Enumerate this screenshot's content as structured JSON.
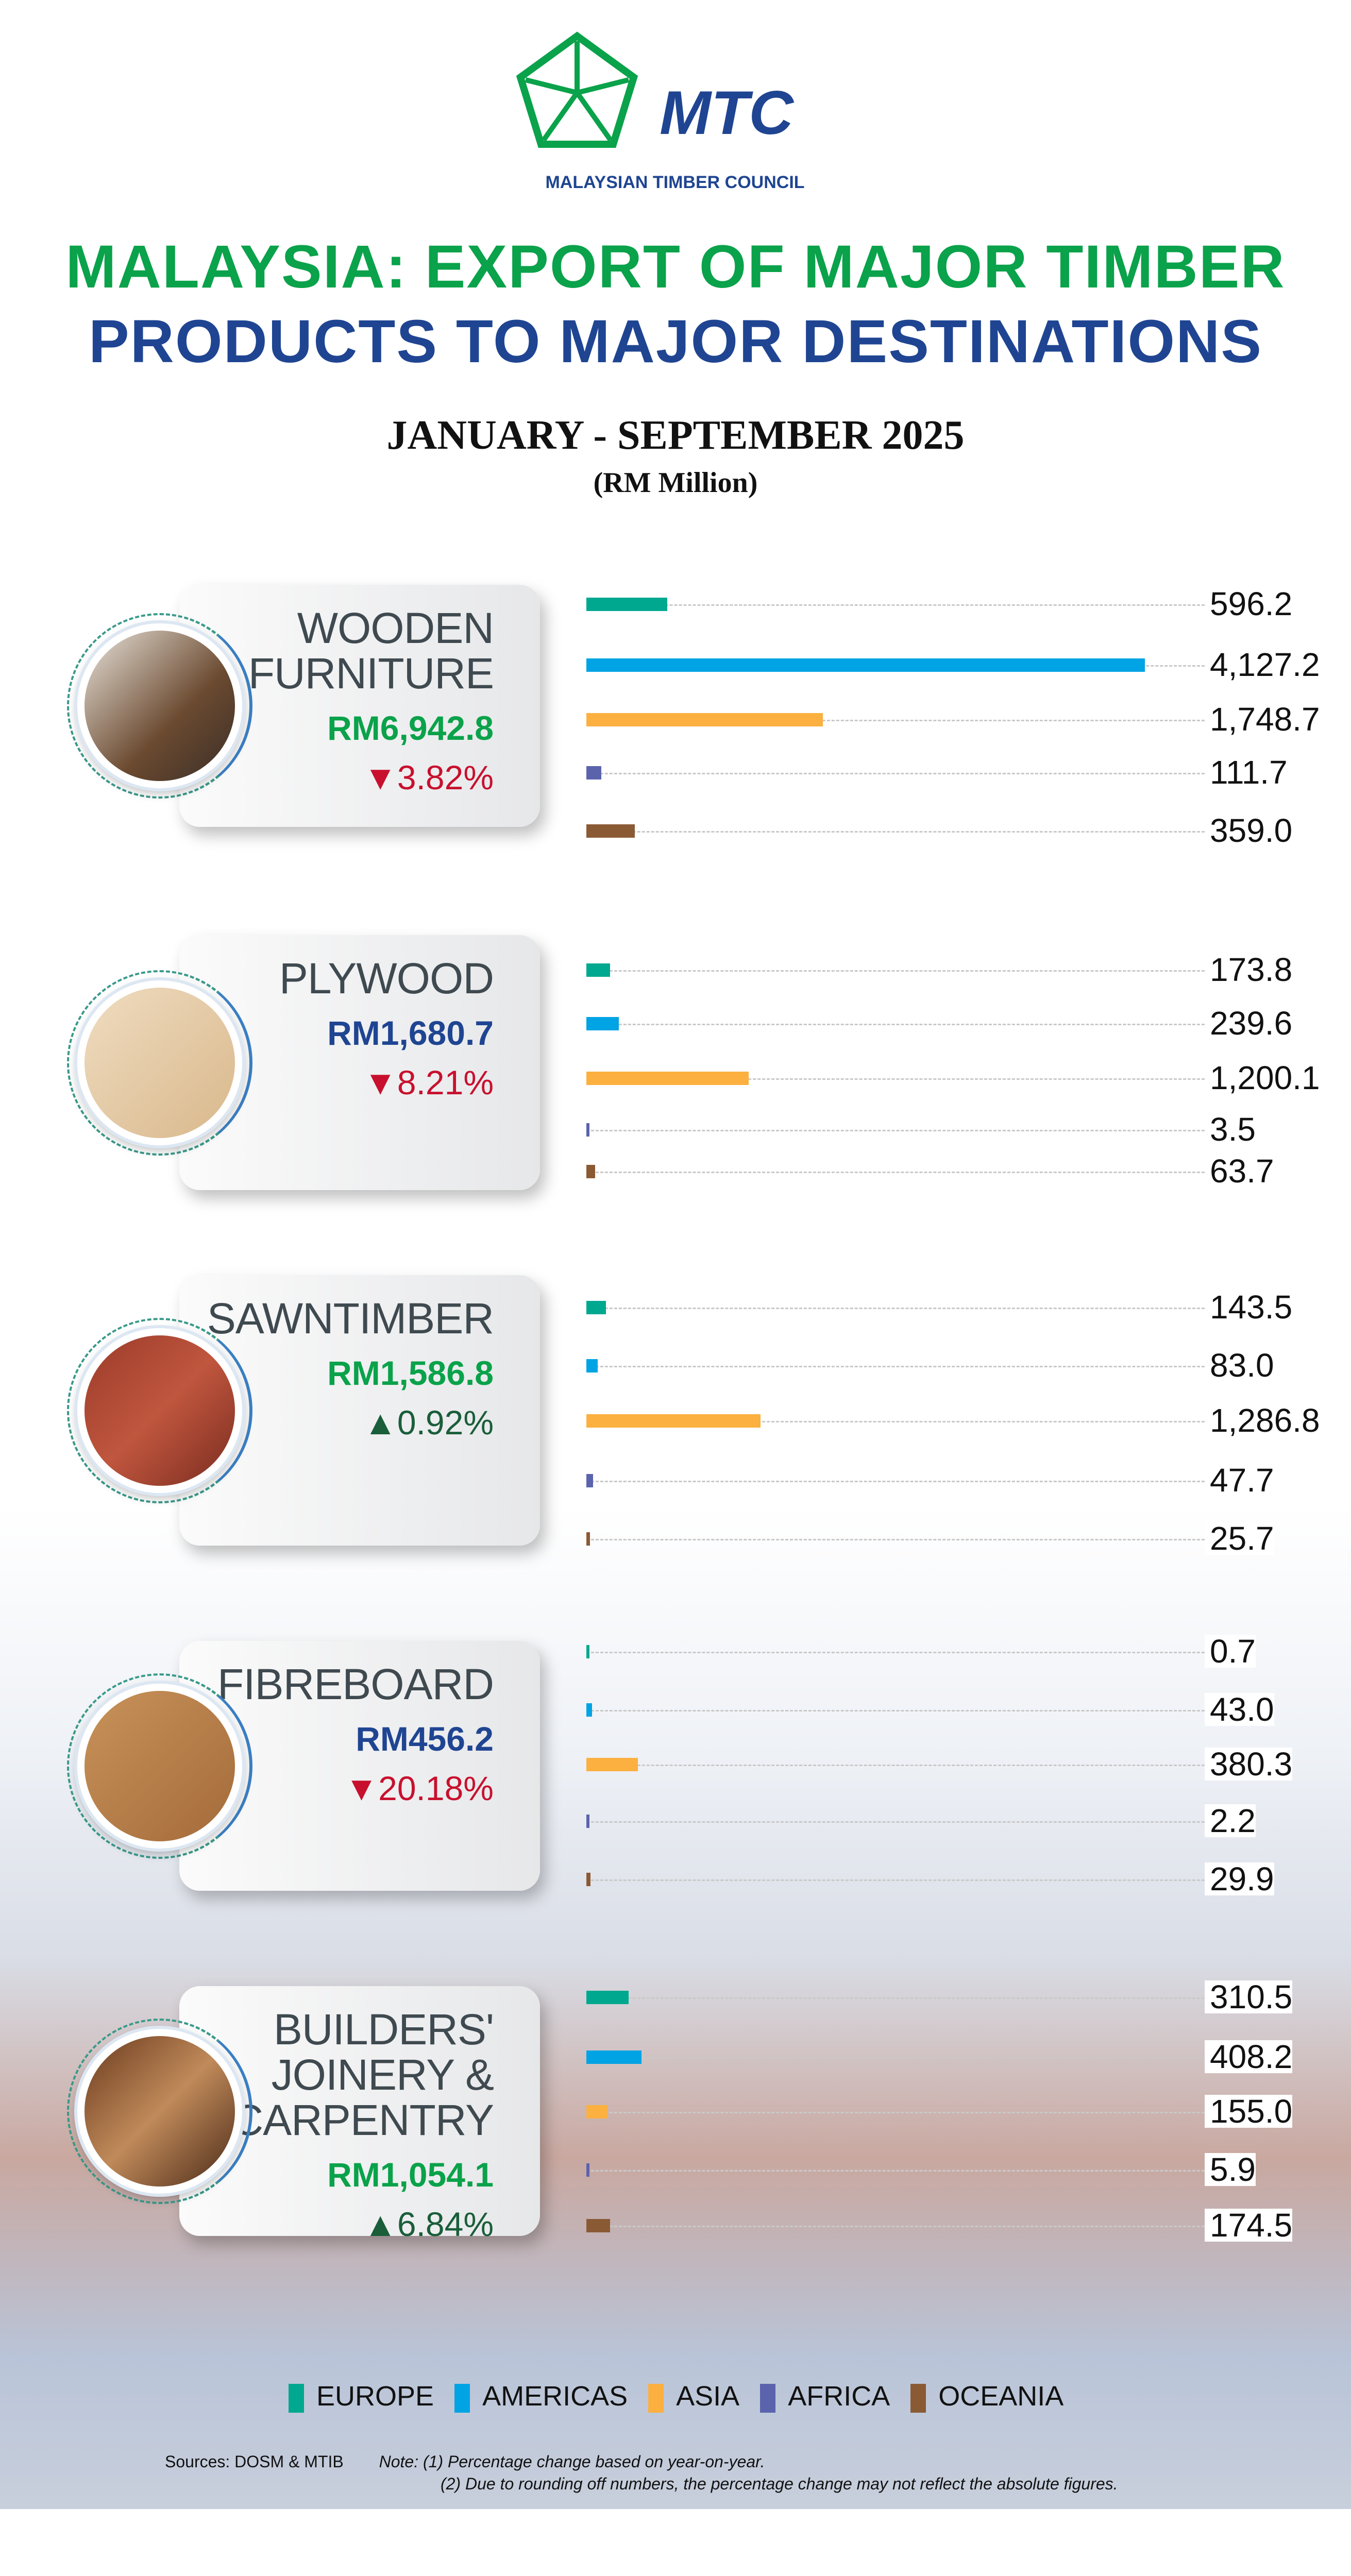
{
  "logo": {
    "name": "MTC",
    "subtitle": "MALAYSIAN TIMBER COUNCIL"
  },
  "title": {
    "line1": "MALAYSIA: EXPORT OF MAJOR TIMBER",
    "line2": "PRODUCTS TO MAJOR DESTINATIONS",
    "period": "JANUARY - SEPTEMBER 2025",
    "unit": "(RM Million)"
  },
  "colors": {
    "green": "#0aa24a",
    "navy": "#1f4592",
    "red": "#c8102e",
    "darkgreen": "#1a5e3a"
  },
  "chart_data": {
    "type": "bar",
    "orientation": "horizontal",
    "unit": "RM Million",
    "legend": [
      "EUROPE",
      "AMERICAS",
      "ASIA",
      "AFRICA",
      "OCEANIA"
    ],
    "legend_placement": "bottom",
    "series_colors": [
      "#00a88f",
      "#00a3e4",
      "#fbb040",
      "#5b63ad",
      "#8a5a35"
    ],
    "products": [
      {
        "name": "WOODEN FURNITURE",
        "total": "RM6,942.8",
        "change": "3.82%",
        "direction": "down",
        "total_color": "green",
        "values": [
          596.2,
          4127.2,
          1748.7,
          111.7,
          359.0
        ],
        "labels": [
          "596.2",
          "4,127.2",
          "1,748.7",
          "111.7",
          "359.0"
        ]
      },
      {
        "name": "PLYWOOD",
        "total": "RM1,680.7",
        "change": "8.21%",
        "direction": "down",
        "total_color": "navy",
        "values": [
          173.8,
          239.6,
          1200.1,
          3.5,
          63.7
        ],
        "labels": [
          "173.8",
          "239.6",
          "1,200.1",
          "3.5",
          "63.7"
        ]
      },
      {
        "name": "SAWNTIMBER",
        "total": "RM1,586.8",
        "change": "0.92%",
        "direction": "up",
        "total_color": "green",
        "values": [
          143.5,
          83.0,
          1286.8,
          47.7,
          25.7
        ],
        "labels": [
          "143.5",
          "83.0",
          "1,286.8",
          "47.7",
          "25.7"
        ]
      },
      {
        "name": "FIBREBOARD",
        "total": "RM456.2",
        "change": "20.18%",
        "direction": "down",
        "total_color": "navy",
        "values": [
          0.7,
          43.0,
          380.3,
          2.2,
          29.9
        ],
        "labels": [
          "0.7",
          "43.0",
          "380.3",
          "2.2",
          "29.9"
        ]
      },
      {
        "name": "BUILDERS' JOINERY & CARPENTRY",
        "total": "RM1,054.1",
        "change": "6.84%",
        "direction": "up",
        "total_color": "green",
        "values": [
          310.5,
          408.2,
          155.0,
          5.9,
          174.5
        ],
        "labels": [
          "310.5",
          "408.2",
          "155.0",
          "5.9",
          "174.5"
        ]
      }
    ]
  },
  "footer": {
    "sources": "Sources: DOSM & MTIB",
    "note1": "Note: (1) Percentage change based on year-on-year.",
    "note2": "(2) Due to rounding off numbers, the percentage change may not reflect the absolute figures."
  }
}
